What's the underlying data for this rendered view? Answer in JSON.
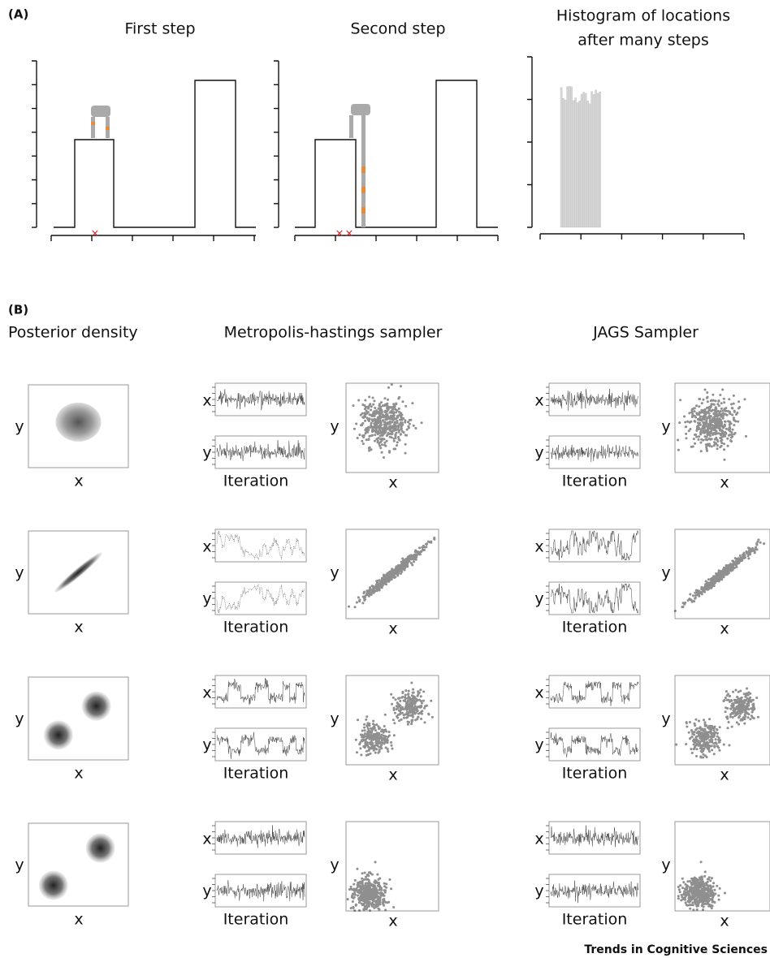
{
  "panel_a": {
    "label": "(A)",
    "titles": [
      "First step",
      "Second step"
    ],
    "hist_title": [
      "Histogram of locations",
      "after many steps"
    ]
  },
  "panel_b": {
    "label": "(B)",
    "col_titles": [
      "Posterior density",
      "Metropolis-hastings sampler",
      "JAGS Sampler"
    ],
    "rows": [
      {
        "density": {
          "y": "y",
          "x": "x"
        },
        "mh": {
          "trace_x": "x",
          "trace_y": "y",
          "iter": "Iteration",
          "scatter_y": "y",
          "scatter_x": "x"
        },
        "jags": {
          "trace_x": "x",
          "trace_y": "y",
          "iter": "Iteration",
          "scatter_y": "y",
          "scatter_x": "x"
        }
      },
      {
        "density": {
          "y": "y",
          "x": "x"
        },
        "mh": {
          "trace_x": "x",
          "trace_y": "y",
          "iter": "Iteration",
          "scatter_y": "y",
          "scatter_x": "x"
        },
        "jags": {
          "trace_x": "x",
          "trace_y": "y",
          "iter": "Iteration",
          "scatter_y": "y",
          "scatter_x": "x"
        }
      },
      {
        "density": {
          "y": "y",
          "x": "x"
        },
        "mh": {
          "trace_x": "x",
          "trace_y": "y",
          "iter": "Iteration",
          "scatter_y": "y",
          "scatter_x": "x"
        },
        "jags": {
          "trace_x": "x",
          "trace_y": "y",
          "iter": "Iteration",
          "scatter_y": "y",
          "scatter_x": "x"
        }
      },
      {
        "density": {
          "y": "y",
          "x": "x"
        },
        "mh": {
          "trace_x": "x",
          "trace_y": "y",
          "iter": "Iteration",
          "scatter_y": "y",
          "scatter_x": "x"
        },
        "jags": {
          "trace_x": "x",
          "trace_y": "y",
          "iter": "Iteration",
          "scatter_y": "y",
          "scatter_x": "x"
        }
      }
    ]
  },
  "footer": "Trends in Cognitive Sciences"
}
